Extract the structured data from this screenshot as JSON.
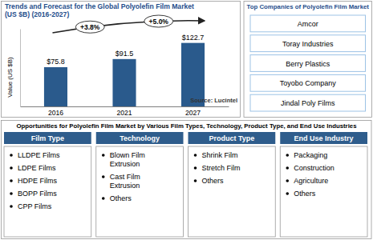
{
  "chart_data": {
    "type": "bar",
    "title": "Trends and Forecast for the Global Polyolefin Film Market (US $B) (2016-2027)",
    "ylabel": "Value (US $B)",
    "source": "Source: Lucintel",
    "categories": [
      "2016",
      "2021",
      "2027"
    ],
    "values": [
      75.8,
      91.5,
      122.7
    ],
    "value_labels": [
      "$75.8",
      "$91.5",
      "$122.7"
    ],
    "data_labels": true,
    "color": "#2a5a8c",
    "ylim": [
      0,
      150
    ],
    "yticks": [],
    "grid": false,
    "tick_labels": "x",
    "annotations": [
      "+3.8%",
      "+5.0%"
    ]
  },
  "companies": {
    "title": "Top Companies of Polyolefin Film Market",
    "items": [
      "Amcor",
      "Toray Industries",
      "Berry Plastics",
      "Toyobo Company",
      "Jindal Poly Films"
    ]
  },
  "opportunities": {
    "title": "Opportunities for Polyolefin Film Market by Various Film Types, Technology, Product Type, and End Use Industries",
    "columns": [
      {
        "header": "Film Type",
        "items": [
          "LLDPE Films",
          "LDPE Films",
          "HDPE Films",
          "BOPP Films",
          "CPP Films"
        ]
      },
      {
        "header": "Technology",
        "items": [
          "Blown Film Extrusion",
          "Cast Film Extrusion",
          "Others"
        ]
      },
      {
        "header": "Product Type",
        "items": [
          "Shrink Film",
          "Stretch Film",
          "Others"
        ]
      },
      {
        "header": "End Use Industry",
        "items": [
          "Packaging",
          "Construction",
          "Agriculture",
          "Others"
        ]
      }
    ]
  }
}
